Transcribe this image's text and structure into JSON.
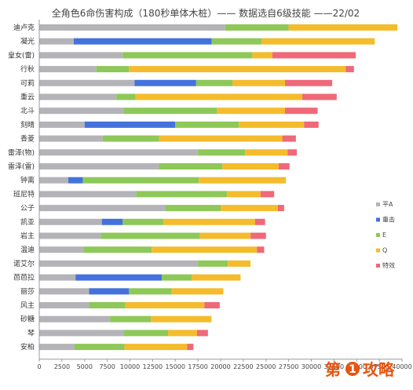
{
  "chart_data": {
    "type": "bar",
    "stacked": true,
    "orientation": "horizontal",
    "title": "全角色6命伤害构成（180秒单体木桩）—— 数据选自6级技能 ——22/02",
    "categories": [
      "迪卢克",
      "凝光",
      "皇女(雷)",
      "行秋",
      "可莉",
      "重云",
      "北斗",
      "刻晴",
      "香菱",
      "雷泽(物)",
      "雷泽(雷)",
      "钟离",
      "班尼特",
      "公子",
      "凯亚",
      "岩主",
      "温迪",
      "诺艾尔",
      "芭芭拉",
      "丽莎",
      "风主",
      "砂糖",
      "琴",
      "安柏"
    ],
    "series": [
      {
        "name": "平A",
        "color": "#b4b4b8",
        "values": [
          20500,
          3800,
          9200,
          6300,
          10500,
          8500,
          9300,
          5000,
          7000,
          17500,
          13200,
          3200,
          10700,
          13900,
          6900,
          6800,
          4900,
          17500,
          4000,
          5500,
          5500,
          7800,
          9300,
          3900
        ]
      },
      {
        "name": "重击",
        "color": "#4472dd",
        "values": [
          0,
          15200,
          0,
          0,
          6800,
          0,
          0,
          10000,
          0,
          0,
          0,
          1600,
          0,
          0,
          2300,
          0,
          0,
          0,
          9500,
          4400,
          0,
          0,
          0,
          0
        ]
      },
      {
        "name": "E",
        "color": "#8ec858",
        "values": [
          7000,
          5500,
          14300,
          3600,
          4000,
          2100,
          10300,
          7000,
          6200,
          5200,
          7000,
          12800,
          10000,
          6100,
          4500,
          10900,
          7500,
          3300,
          3300,
          4700,
          4000,
          4500,
          4900,
          5500
        ]
      },
      {
        "name": "Q",
        "color": "#f4bc2c",
        "values": [
          12000,
          12500,
          2200,
          23900,
          5800,
          18400,
          7500,
          7200,
          13600,
          4700,
          6200,
          9600,
          3700,
          6300,
          10100,
          5600,
          11600,
          2500,
          5400,
          5700,
          8700,
          6700,
          3200,
          6900
        ]
      },
      {
        "name": "特效",
        "color": "#ef6979",
        "values": [
          0,
          0,
          9200,
          900,
          5200,
          3800,
          3600,
          1600,
          1500,
          1000,
          1200,
          0,
          1500,
          700,
          1100,
          1700,
          800,
          0,
          0,
          0,
          1700,
          0,
          1200,
          700
        ]
      }
    ],
    "xlim": [
      0,
      40000
    ],
    "xticks": [
      0,
      2500,
      5000,
      7500,
      10000,
      12500,
      15000,
      17500,
      20000,
      22500,
      25000,
      27500,
      30000,
      32500,
      35000,
      37500,
      40000
    ],
    "grid": false,
    "legend_position": "right"
  },
  "watermark": {
    "text": "第",
    "number": "1",
    "text2": "攻略"
  }
}
